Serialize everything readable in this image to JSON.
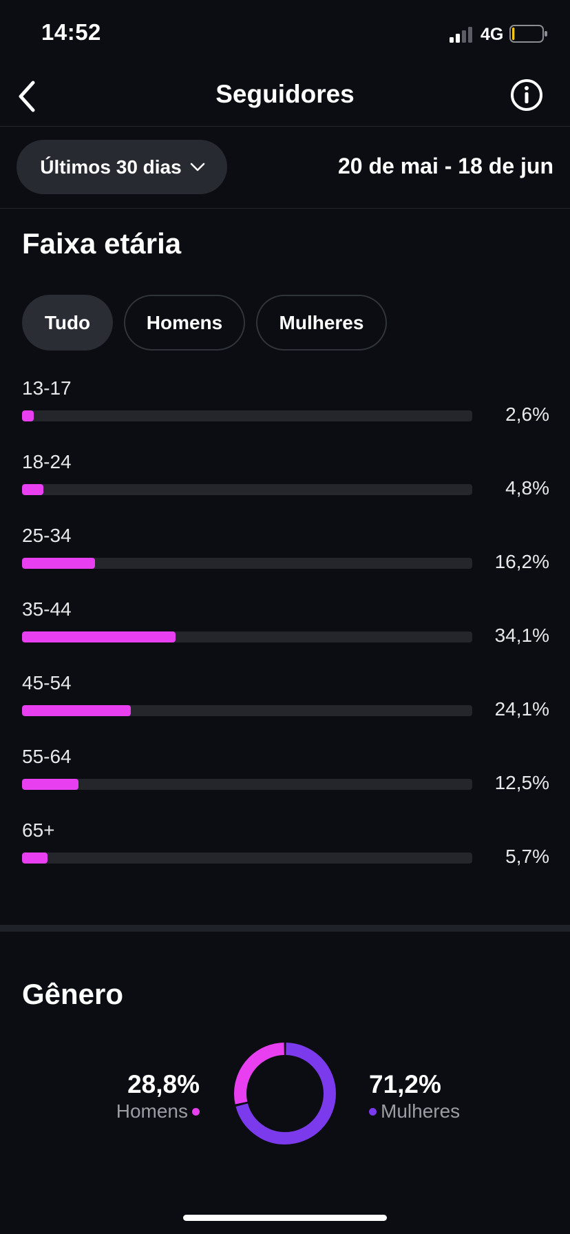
{
  "status_bar": {
    "time": "14:52",
    "network": "4G",
    "signal_bars_active": 2,
    "signal_bars_total": 4,
    "battery_level": 0.08,
    "battery_color": "#f5c518"
  },
  "header": {
    "title": "Seguidores",
    "back_icon": "chevron-left-icon",
    "info_icon": "info-icon"
  },
  "period": {
    "selector_label": "Últimos 30 dias",
    "date_range": "20 de mai - 18 de jun"
  },
  "age_section": {
    "title": "Faixa etária",
    "filters": [
      {
        "label": "Tudo",
        "selected": true
      },
      {
        "label": "Homens",
        "selected": false
      },
      {
        "label": "Mulheres",
        "selected": false
      }
    ],
    "accent_color": "#e83ff0",
    "rows": [
      {
        "range": "13-17",
        "value": 2.6,
        "label": "2,6%"
      },
      {
        "range": "18-24",
        "value": 4.8,
        "label": "4,8%"
      },
      {
        "range": "25-34",
        "value": 16.2,
        "label": "16,2%"
      },
      {
        "range": "35-44",
        "value": 34.1,
        "label": "34,1%"
      },
      {
        "range": "45-54",
        "value": 24.1,
        "label": "24,1%"
      },
      {
        "range": "55-64",
        "value": 12.5,
        "label": "12,5%"
      },
      {
        "range": "65+",
        "value": 5.7,
        "label": "5,7%"
      }
    ]
  },
  "gender_section": {
    "title": "Gênero",
    "men": {
      "label": "Homens",
      "value": 28.8,
      "pct_label": "28,8%",
      "color": "#e83ff0"
    },
    "women": {
      "label": "Mulheres",
      "value": 71.2,
      "pct_label": "71,2%",
      "color": "#7c3aed"
    }
  }
}
